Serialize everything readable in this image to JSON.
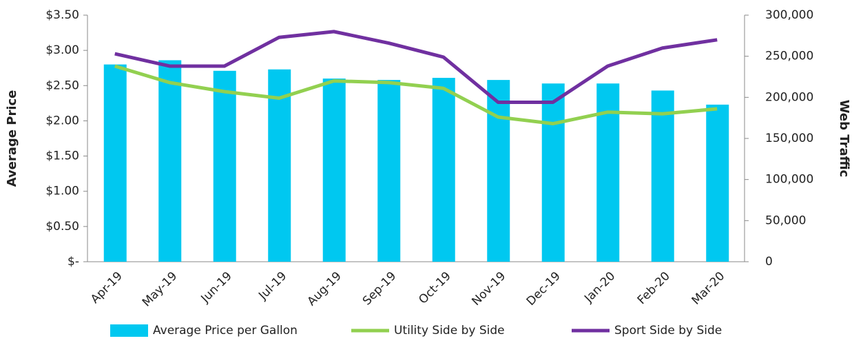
{
  "chart_data": {
    "type": "bar-line",
    "y_label": "Average Price",
    "y2_label": "Web Traffic",
    "categories": [
      "Apr-19",
      "May-19",
      "Jun-19",
      "Jul-19",
      "Aug-19",
      "Sep-19",
      "Oct-19",
      "Nov-19",
      "Dec-19",
      "Jan-20",
      "Feb-20",
      "Mar-20"
    ],
    "series": [
      {
        "name": "Average Price per Gallon",
        "type": "bar",
        "color": "#00c8f0",
        "axis": "y",
        "values": [
          2.8,
          2.86,
          2.71,
          2.73,
          2.6,
          2.58,
          2.61,
          2.58,
          2.53,
          2.53,
          2.43,
          2.23
        ]
      },
      {
        "name": "Utility Side by Side",
        "type": "line",
        "color": "#92d050",
        "axis": "y2",
        "values": [
          238000,
          218000,
          207000,
          199000,
          220000,
          218000,
          211000,
          176000,
          168000,
          182000,
          180000,
          186000
        ]
      },
      {
        "name": "Sport Side by Side",
        "type": "line",
        "color": "#7030a0",
        "axis": "y2",
        "values": [
          253000,
          238000,
          238000,
          273000,
          280000,
          266000,
          249000,
          194000,
          194000,
          238000,
          260000,
          270000
        ]
      }
    ],
    "ylim": [
      0,
      3.5
    ],
    "yticks": [
      {
        "value": 0,
        "label": "$-"
      },
      {
        "value": 0.5,
        "label": "$0.50"
      },
      {
        "value": 1,
        "label": "$1.00"
      },
      {
        "value": 1.5,
        "label": "$1.50"
      },
      {
        "value": 2,
        "label": "$2.00"
      },
      {
        "value": 2.5,
        "label": "$2.50"
      },
      {
        "value": 3,
        "label": "$3.00"
      },
      {
        "value": 3.5,
        "label": "$3.50"
      }
    ],
    "y2lim": [
      0,
      300000
    ],
    "y2ticks": [
      0,
      {
        "value": 50000,
        "label": "50,000"
      },
      {
        "value": 100000,
        "label": "100,000"
      },
      {
        "value": 150000,
        "label": "150,000"
      },
      {
        "value": 200000,
        "label": "200,000"
      },
      {
        "value": 250000,
        "label": "250,000"
      },
      {
        "value": 300000,
        "label": "300,000"
      }
    ],
    "legend": "bottom"
  }
}
